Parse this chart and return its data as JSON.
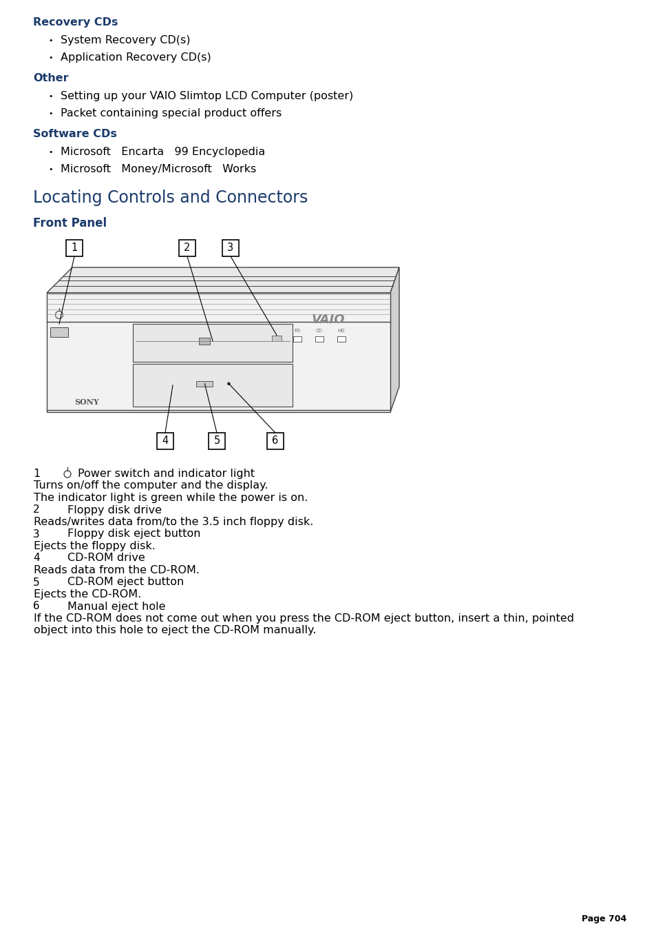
{
  "bg_color": "#ffffff",
  "heading_color": "#1a3a6b",
  "text_color": "#000000",
  "section1_heading": "Recovery CDs",
  "section1_bullets": [
    "System Recovery CD(s)",
    "Application Recovery CD(s)"
  ],
  "section2_heading": "Other",
  "section2_bullets": [
    "Setting up your VAIO Slimtop LCD Computer (poster)",
    "Packet containing special product offers"
  ],
  "section3_heading": "Software CDs",
  "section3_bullets": [
    "Microsoft   Encarta   99 Encyclopedia",
    "Microsoft   Money/Microsoft   Works"
  ],
  "main_heading": "Locating Controls and Connectors",
  "sub_heading": "Front Panel",
  "desc_entries": [
    {
      "num": "1",
      "has_icon": true,
      "title": "Power switch and indicator light",
      "body": [
        "Turns on/off the computer and the display.",
        "The indicator light is green while the power is on."
      ]
    },
    {
      "num": "2",
      "has_icon": false,
      "title": "Floppy disk drive",
      "body": [
        "Reads/writes data from/to the 3.5 inch floppy disk."
      ]
    },
    {
      "num": "3",
      "has_icon": false,
      "title": "Floppy disk eject button",
      "body": [
        "Ejects the floppy disk."
      ]
    },
    {
      "num": "4",
      "has_icon": false,
      "title": "CD-ROM drive",
      "body": [
        "Reads data from the CD-ROM."
      ]
    },
    {
      "num": "5",
      "has_icon": false,
      "title": "CD-ROM eject button",
      "body": [
        "Ejects the CD-ROM."
      ]
    },
    {
      "num": "6",
      "has_icon": false,
      "title": "Manual eject hole",
      "body": [
        "If the CD-ROM does not come out when you press the CD-ROM eject button, insert a thin, pointed",
        "object into this hole to eject the CD-ROM manually."
      ]
    }
  ],
  "page_number": "Page 704"
}
